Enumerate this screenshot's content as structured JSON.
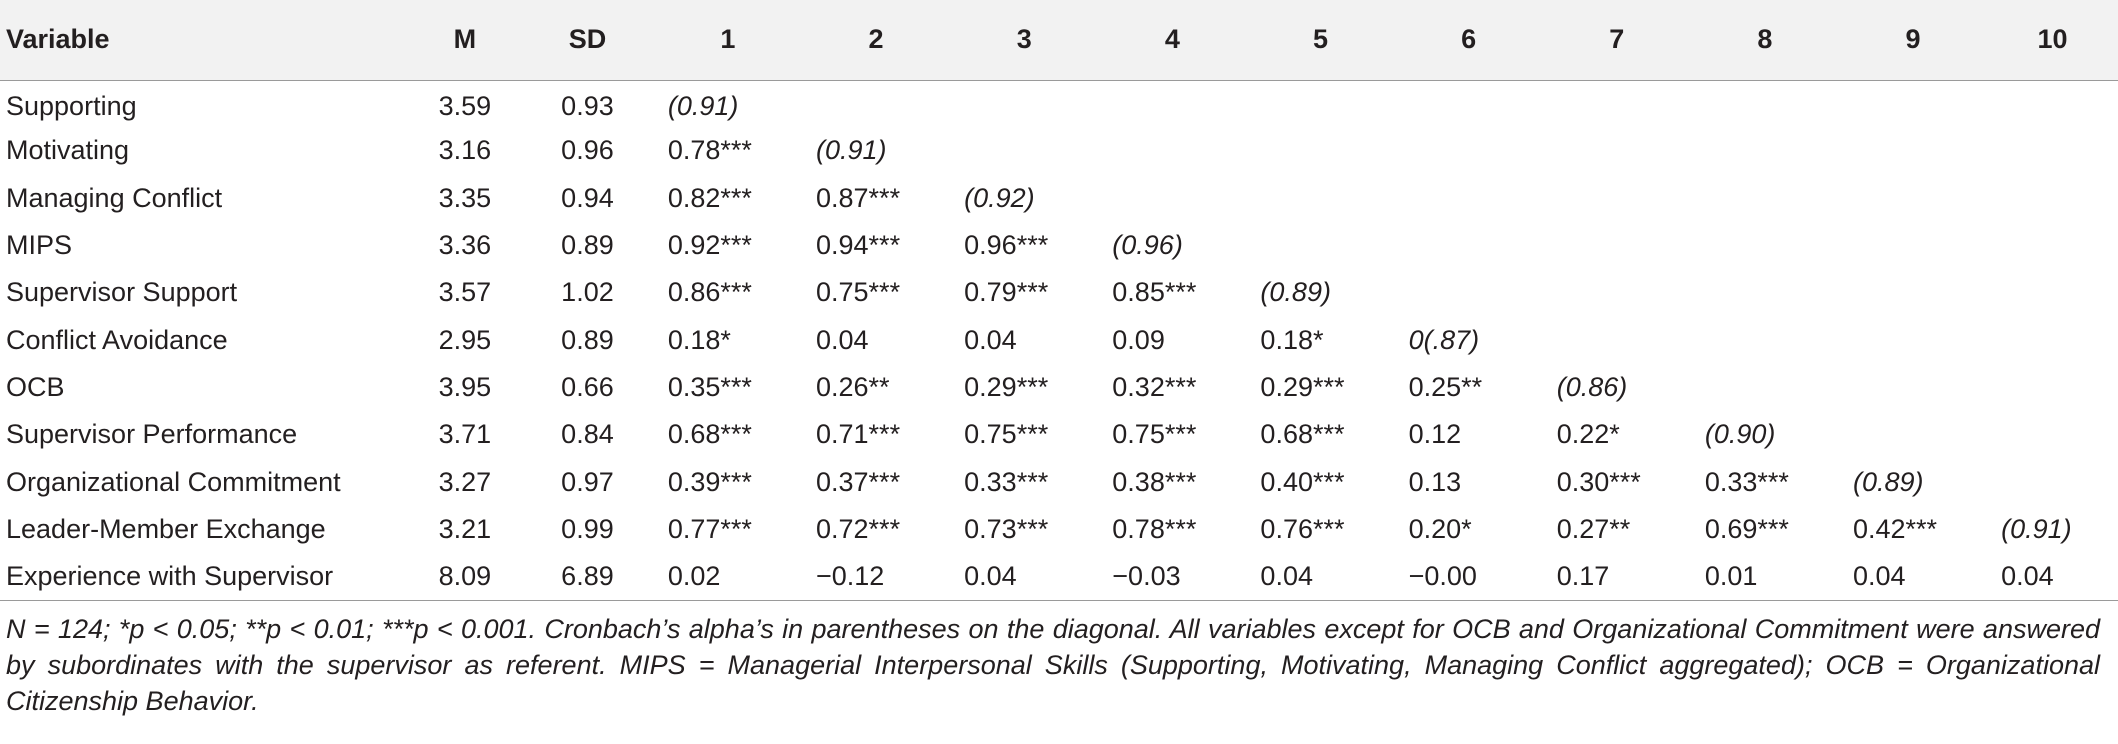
{
  "table": {
    "headers": [
      "Variable",
      "M",
      "SD",
      "1",
      "2",
      "3",
      "4",
      "5",
      "6",
      "7",
      "8",
      "9",
      "10"
    ],
    "rows": [
      {
        "variable": "Supporting",
        "m": "3.59",
        "sd": "0.93",
        "corr": [
          "(0.91)",
          "",
          "",
          "",
          "",
          "",
          "",
          "",
          "",
          ""
        ]
      },
      {
        "variable": "Motivating",
        "m": "3.16",
        "sd": "0.96",
        "corr": [
          "0.78***",
          "(0.91)",
          "",
          "",
          "",
          "",
          "",
          "",
          "",
          ""
        ]
      },
      {
        "variable": "Managing Conflict",
        "m": "3.35",
        "sd": "0.94",
        "corr": [
          "0.82***",
          "0.87***",
          "(0.92)",
          "",
          "",
          "",
          "",
          "",
          "",
          ""
        ]
      },
      {
        "variable": "MIPS",
        "m": "3.36",
        "sd": "0.89",
        "corr": [
          "0.92***",
          "0.94***",
          "0.96***",
          "(0.96)",
          "",
          "",
          "",
          "",
          "",
          ""
        ]
      },
      {
        "variable": "Supervisor Support",
        "m": "3.57",
        "sd": "1.02",
        "corr": [
          "0.86***",
          "0.75***",
          "0.79***",
          "0.85***",
          "(0.89)",
          "",
          "",
          "",
          "",
          ""
        ]
      },
      {
        "variable": "Conflict Avoidance",
        "m": "2.95",
        "sd": "0.89",
        "corr": [
          "0.18*",
          "0.04",
          "0.04",
          "0.09",
          "0.18*",
          "0(.87)",
          "",
          "",
          "",
          ""
        ]
      },
      {
        "variable": "OCB",
        "m": "3.95",
        "sd": "0.66",
        "corr": [
          "0.35***",
          "0.26**",
          "0.29***",
          "0.32***",
          "0.29***",
          "0.25**",
          "(0.86)",
          "",
          "",
          ""
        ]
      },
      {
        "variable": "Supervisor Performance",
        "m": "3.71",
        "sd": "0.84",
        "corr": [
          "0.68***",
          "0.71***",
          "0.75***",
          "0.75***",
          "0.68***",
          "0.12",
          "0.22*",
          "(0.90)",
          "",
          ""
        ]
      },
      {
        "variable": "Organizational Commitment",
        "m": "3.27",
        "sd": "0.97",
        "corr": [
          "0.39***",
          "0.37***",
          "0.33***",
          "0.38***",
          "0.40***",
          "0.13",
          "0.30***",
          "0.33***",
          "(0.89)",
          ""
        ]
      },
      {
        "variable": "Leader-Member Exchange",
        "m": "3.21",
        "sd": "0.99",
        "corr": [
          "0.77***",
          "0.72***",
          "0.73***",
          "0.78***",
          "0.76***",
          "0.20*",
          "0.27**",
          "0.69***",
          "0.42***",
          "(0.91)"
        ]
      },
      {
        "variable": "Experience with Supervisor",
        "m": "8.09",
        "sd": "6.89",
        "corr": [
          "0.02",
          "−0.12",
          "0.04",
          "−0.03",
          "0.04",
          "−0.00",
          "0.17",
          "0.01",
          "0.04",
          "0.04"
        ]
      }
    ]
  },
  "note": "N = 124; *p < 0.05; **p < 0.01; ***p < 0.001. Cronbach’s alpha’s in parentheses on the diagonal. All variables except for OCB and Organizational Commitment were answered by subordinates with the supervisor as referent. MIPS = Managerial Interpersonal Skills (Supporting, Motivating, Managing Conflict aggregated); OCB = Organizational Citizenship Behavior.",
  "colors": {
    "header_bg": "#f2f2f2",
    "rule": "#9a9a9a",
    "text": "#231f20"
  }
}
